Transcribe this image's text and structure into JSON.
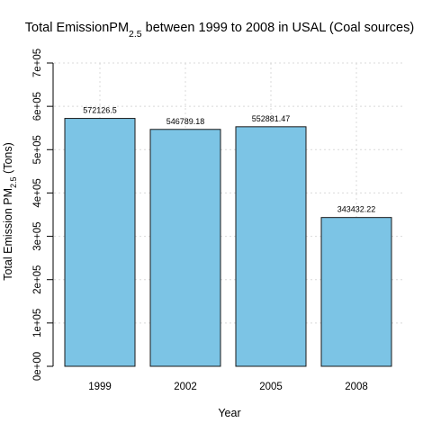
{
  "chart_data": {
    "type": "bar",
    "title_main": "Total EmissionPM",
    "title_sub": "2.5",
    "title_rest": " between 1999 to 2008 in USAL (Coal sources)",
    "xlabel": "Year",
    "ylabel_main": "Total Emission PM",
    "ylabel_sub": "2.5",
    "ylabel_rest": " (Tons)",
    "categories": [
      "1999",
      "2002",
      "2005",
      "2008"
    ],
    "values": [
      572126.5,
      546789.18,
      552881.47,
      343432.22
    ],
    "value_labels": [
      "572126.5",
      "546789.18",
      "552881.47",
      "343432.22"
    ],
    "ylim": [
      0,
      700000
    ],
    "yticks": [
      0,
      100000,
      200000,
      300000,
      400000,
      500000,
      600000,
      700000
    ],
    "ytick_labels": [
      "0e+00",
      "1e+05",
      "2e+05",
      "3e+05",
      "4e+05",
      "5e+05",
      "6e+05",
      "7e+05"
    ],
    "grid": true,
    "colors": {
      "bar_fill": "#7cc4e5",
      "bar_stroke": "#1a1a1a",
      "grid": "#d9d9d9"
    }
  }
}
